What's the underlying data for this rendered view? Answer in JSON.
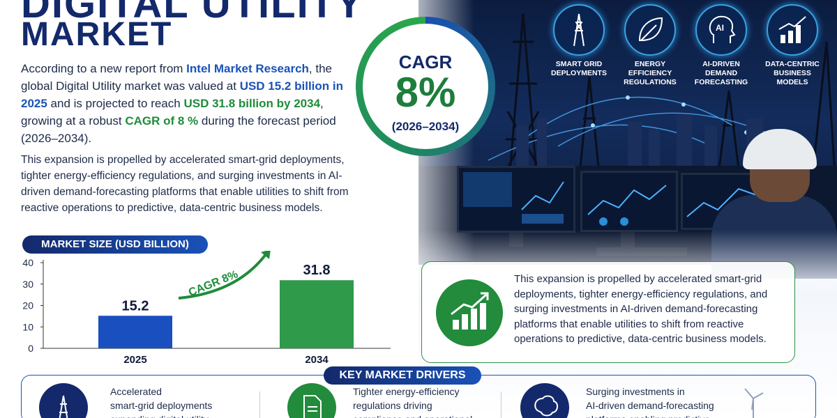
{
  "title": {
    "line1": "DIGITAL UTILITY",
    "line2": "MARKET"
  },
  "intro": {
    "p1": "According to a new report from ",
    "source": "Intel Market Research",
    "p2": ", the global Digital Utility market was valued at ",
    "value_2025": "USD 15.2 billion in 2025",
    "p3": " and is projected to reach ",
    "value_2034": "USD 31.8 billion by 2034",
    "p4": ", growing at a robust ",
    "cagr_text": "CAGR of 8 %",
    "p5": " during the forecast period (2026–2034)."
  },
  "blurb": "This expansion is propelled by accelerated smart-grid deployments, tighter energy-efficiency regulations, and surging investments in AI-driven demand-forecasting platforms that enable utilities to shift from reactive operations to predictive, data-centric business models.",
  "cagr": {
    "label": "CAGR",
    "value": "8%",
    "period": "(2026–2034)"
  },
  "trends": [
    {
      "label": "SMART GRID\nDEPLOYMENTS",
      "icon": "power-tower-icon"
    },
    {
      "label": "ENERGY\nEFFICIENCY\nREGULATIONS",
      "icon": "leaf-icon"
    },
    {
      "label": "AI-DRIVEN\nDEMAND\nFORECASTING",
      "icon": "ai-head-icon"
    },
    {
      "label": "DATA-CENTRIC\nBUSINESS\nMODELS",
      "icon": "growth-chart-icon"
    }
  ],
  "chart_title": "MARKET SIZE (USD BILLION)",
  "chart_data": {
    "type": "bar",
    "categories": [
      "2025",
      "2034"
    ],
    "values": [
      15.2,
      31.8
    ],
    "value_labels": [
      "15.2",
      "31.8"
    ],
    "ylim": [
      0,
      40
    ],
    "yticks": [
      0,
      10,
      20,
      30,
      40
    ],
    "annotation": "CAGR 8%",
    "colors": [
      "#1a4fc0",
      "#2e9a4a"
    ]
  },
  "card_text": "This expansion is propelled by accelerated smart-grid deployments, tighter energy-efficiency regulations, and surging investments in AI-driven demand-forecasting platforms that enable utilities to shift from reactive operations to predictive, data-centric business models.",
  "drivers_title": "KEY MARKET DRIVERS",
  "drivers": [
    {
      "text": "Accelerated\nsmart-grid deployments\nexpanding digital utility",
      "icon": "power-tower-icon",
      "color": "#13296b"
    },
    {
      "text": "Tighter energy-efficiency\nregulations driving\ncompliance and operational",
      "icon": "document-check-icon",
      "color": "#228b3c"
    },
    {
      "text": "Surging investments in\nAI-driven demand-forecasting\nplatforms enabling predictive",
      "icon": "brain-icon",
      "color": "#13296b"
    }
  ],
  "colors": {
    "navy": "#13296b",
    "blue": "#1a52b8",
    "green": "#1e8c3a"
  }
}
